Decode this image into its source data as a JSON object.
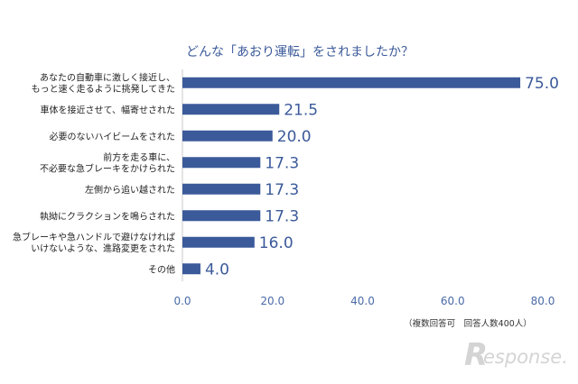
{
  "chart_data": {
    "type": "bar",
    "orientation": "horizontal",
    "title": "どんな「あおり運転」をされましたか？",
    "categories": [
      [
        "あなたの自動車に激しく接近し、",
        "もっと速く走るように挑発してきた"
      ],
      [
        "車体を接近させて、幅寄せされた"
      ],
      [
        "必要のないハイビームをされた"
      ],
      [
        "前方を走る車に、",
        "不必要な急ブレーキをかけられた"
      ],
      [
        "左側から追い越された"
      ],
      [
        "執拗にクラクションを鳴らされた"
      ],
      [
        "急ブレーキや急ハンドルで避けなければ",
        "いけないような、進路変更をされた"
      ],
      [
        "その他"
      ]
    ],
    "values": [
      75.0,
      21.5,
      20.0,
      17.3,
      17.3,
      17.3,
      16.0,
      4.0
    ],
    "value_labels": [
      "75.0",
      "21.5",
      "20.0",
      "17.3",
      "17.3",
      "17.3",
      "16.0",
      "4.0"
    ],
    "xlim": [
      0,
      80
    ],
    "xticks": [
      "0.0",
      "20.0",
      "40.0",
      "60.0",
      "80.0"
    ],
    "xtick_values": [
      0,
      20,
      40,
      60,
      80
    ],
    "note": "（複数回答可　回答人数400人）",
    "grid": false,
    "bar_color": "#3b5a9a"
  },
  "watermark": {
    "mark": "R",
    "text": "esponse."
  }
}
